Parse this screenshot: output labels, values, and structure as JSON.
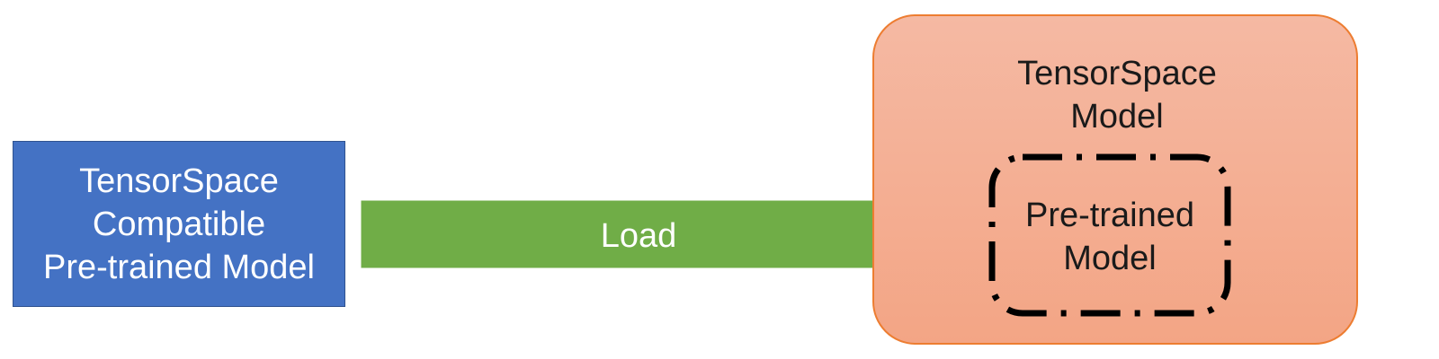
{
  "source": {
    "label": "TensorSpace\nCompatible\nPre-trained Model"
  },
  "arrow": {
    "label": "Load"
  },
  "target": {
    "label": "TensorSpace\nModel",
    "inner": {
      "label": "Pre-trained\nModel"
    }
  },
  "colors": {
    "source_fill": "#4472c4",
    "arrow_fill": "#70ad47",
    "target_fill": "#f4ad91",
    "target_border": "#ed7d31"
  }
}
